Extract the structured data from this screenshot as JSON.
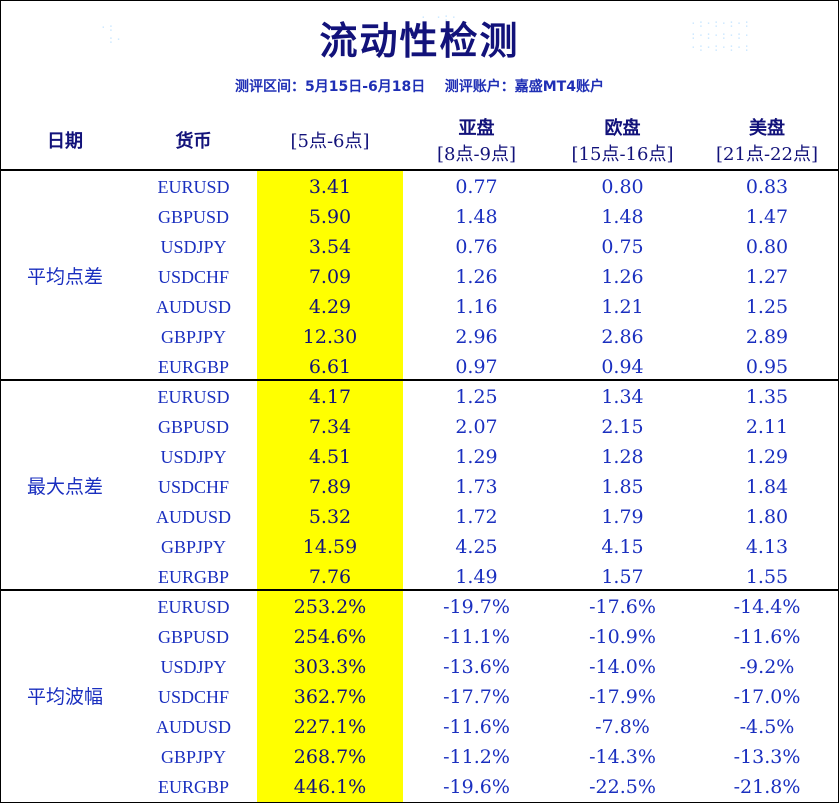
{
  "title": "流动性检测",
  "subtitle": "测评区间：5月15日-6月18日    测评账户：嘉盛MT4账户",
  "headers": {
    "date": "日期",
    "currency": "货币",
    "col0": "[5点-6点]",
    "col1_top": "亚盘",
    "col1_bottom": "[8点-9点]",
    "col2_top": "欧盘",
    "col2_bottom": "[15点-16点]",
    "col3_top": "美盘",
    "col3_bottom": "[21点-22点]"
  },
  "colors": {
    "header_text": "#12127a",
    "cell_text": "#1a2fbf",
    "highlight": "#ffff00"
  },
  "groups": [
    {
      "label": "平均点差",
      "rows": [
        [
          "EURUSD",
          "3.41",
          "0.77",
          "0.80",
          "0.83"
        ],
        [
          "GBPUSD",
          "5.90",
          "1.48",
          "1.48",
          "1.47"
        ],
        [
          "USDJPY",
          "3.54",
          "0.76",
          "0.75",
          "0.80"
        ],
        [
          "USDCHF",
          "7.09",
          "1.26",
          "1.26",
          "1.27"
        ],
        [
          "AUDUSD",
          "4.29",
          "1.16",
          "1.21",
          "1.25"
        ],
        [
          "GBPJPY",
          "12.30",
          "2.96",
          "2.86",
          "2.89"
        ],
        [
          "EURGBP",
          "6.61",
          "0.97",
          "0.94",
          "0.95"
        ]
      ]
    },
    {
      "label": "最大点差",
      "rows": [
        [
          "EURUSD",
          "4.17",
          "1.25",
          "1.34",
          "1.35"
        ],
        [
          "GBPUSD",
          "7.34",
          "2.07",
          "2.15",
          "2.11"
        ],
        [
          "USDJPY",
          "4.51",
          "1.29",
          "1.28",
          "1.29"
        ],
        [
          "USDCHF",
          "7.89",
          "1.73",
          "1.85",
          "1.84"
        ],
        [
          "AUDUSD",
          "5.32",
          "1.72",
          "1.79",
          "1.80"
        ],
        [
          "GBPJPY",
          "14.59",
          "4.25",
          "4.15",
          "4.13"
        ],
        [
          "EURGBP",
          "7.76",
          "1.49",
          "1.57",
          "1.55"
        ]
      ]
    },
    {
      "label": "平均波幅",
      "rows": [
        [
          "EURUSD",
          "253.2%",
          "-19.7%",
          "-17.6%",
          "-14.4%"
        ],
        [
          "GBPUSD",
          "254.6%",
          "-11.1%",
          "-10.9%",
          "-11.6%"
        ],
        [
          "USDJPY",
          "303.3%",
          "-13.6%",
          "-14.0%",
          "-9.2%"
        ],
        [
          "USDCHF",
          "362.7%",
          "-17.7%",
          "-17.9%",
          "-17.0%"
        ],
        [
          "AUDUSD",
          "227.1%",
          "-11.6%",
          "-7.8%",
          "-4.5%"
        ],
        [
          "GBPJPY",
          "268.7%",
          "-11.2%",
          "-14.3%",
          "-13.3%"
        ],
        [
          "EURGBP",
          "446.1%",
          "-19.6%",
          "-22.5%",
          "-21.8%"
        ]
      ]
    }
  ]
}
